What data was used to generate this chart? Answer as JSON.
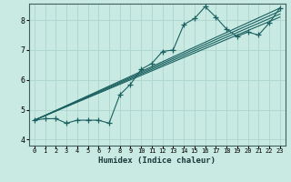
{
  "xlabel": "Humidex (Indice chaleur)",
  "bg_color": "#c8eae2",
  "line_color": "#1a6060",
  "grid_color": "#b0d8d0",
  "xlim": [
    -0.5,
    23.5
  ],
  "ylim": [
    3.8,
    8.55
  ],
  "xtick_labels": [
    "0",
    "1",
    "2",
    "3",
    "4",
    "5",
    "6",
    "7",
    "8",
    "9",
    "10",
    "11",
    "12",
    "13",
    "14",
    "15",
    "16",
    "17",
    "18",
    "19",
    "20",
    "21",
    "22",
    "23"
  ],
  "yticks": [
    4,
    5,
    6,
    7,
    8
  ],
  "straight_lines": [
    [
      [
        0,
        23
      ],
      [
        4.65,
        8.4
      ]
    ],
    [
      [
        0,
        23
      ],
      [
        4.65,
        8.3
      ]
    ],
    [
      [
        0,
        23
      ],
      [
        4.65,
        8.2
      ]
    ],
    [
      [
        0,
        23
      ],
      [
        4.65,
        8.1
      ]
    ]
  ],
  "jagged_x": [
    0,
    1,
    2,
    3,
    4,
    5,
    6,
    7,
    8,
    9,
    10,
    11,
    12,
    13,
    14,
    15,
    16,
    17,
    18,
    19,
    20,
    21,
    22,
    23
  ],
  "jagged_y": [
    4.65,
    4.7,
    4.7,
    4.55,
    4.65,
    4.65,
    4.65,
    4.55,
    5.5,
    5.85,
    6.35,
    6.55,
    6.95,
    7.0,
    7.85,
    8.05,
    8.45,
    8.1,
    7.7,
    7.45,
    7.6,
    7.5,
    7.9,
    8.4
  ]
}
